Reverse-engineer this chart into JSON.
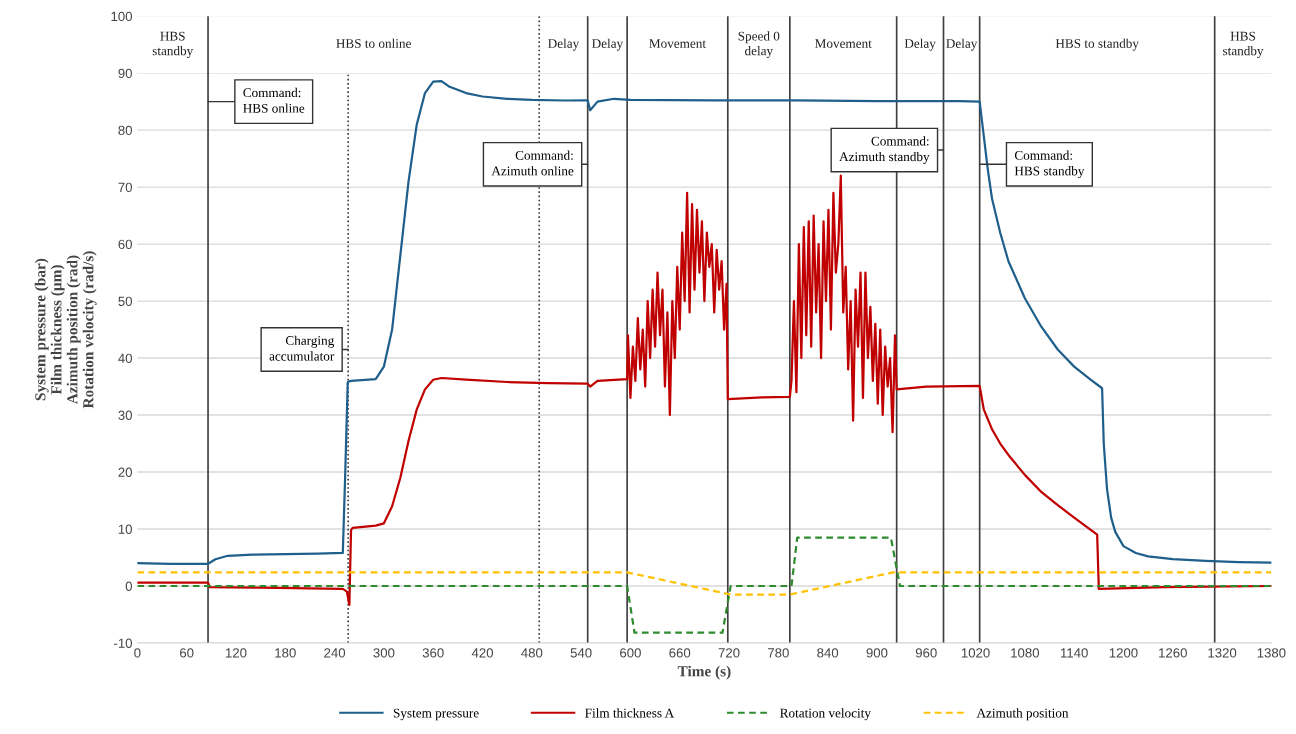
{
  "chart_data": {
    "type": "line",
    "xlabel": "Time (s)",
    "ylabel": "System pressure (bar)\nFilm thickness (µm)\nAzimuth position (rad)\nRotation velocity (rad/s)",
    "xlim": [
      0,
      1380
    ],
    "xticks": [
      0,
      60,
      120,
      180,
      240,
      300,
      360,
      420,
      480,
      540,
      600,
      660,
      720,
      780,
      840,
      900,
      960,
      1020,
      1080,
      1140,
      1200,
      1260,
      1320,
      1380
    ],
    "ylim": [
      -10,
      100
    ],
    "yticks": [
      -10,
      0,
      10,
      20,
      30,
      40,
      50,
      60,
      70,
      80,
      90,
      100
    ],
    "grid": "y",
    "legend": "bottom",
    "series": [
      {
        "name": "System pressure",
        "color": "#1f5f8b",
        "line_style": "solid",
        "x": [
          0,
          40,
          86,
          95,
          110,
          140,
          180,
          220,
          250,
          253,
          256,
          260,
          290,
          300,
          310,
          320,
          330,
          340,
          350,
          360,
          370,
          380,
          400,
          420,
          450,
          480,
          520,
          548,
          551,
          560,
          580,
          600,
          700,
          800,
          900,
          1000,
          1025,
          1030,
          1035,
          1040,
          1050,
          1060,
          1080,
          1100,
          1120,
          1140,
          1160,
          1174,
          1176,
          1180,
          1185,
          1190,
          1200,
          1215,
          1230,
          1260,
          1300,
          1340,
          1380
        ],
        "values": [
          4.0,
          3.9,
          3.9,
          4.7,
          5.3,
          5.5,
          5.6,
          5.7,
          5.8,
          20,
          35.8,
          36.0,
          36.3,
          38.5,
          45,
          58,
          71,
          81,
          86.5,
          88.5,
          88.6,
          87.6,
          86.5,
          85.9,
          85.5,
          85.3,
          85.2,
          85.2,
          83.5,
          85.0,
          85.5,
          85.3,
          85.2,
          85.2,
          85.1,
          85.1,
          85.0,
          79,
          73,
          68,
          62,
          57,
          50.5,
          45.5,
          41.5,
          38.5,
          36.2,
          34.7,
          25,
          17,
          12,
          9.5,
          7,
          5.8,
          5.2,
          4.7,
          4.4,
          4.2,
          4.1
        ]
      },
      {
        "name": "Film thickness A",
        "color": "#c00000",
        "line_style": "solid",
        "x": [
          0,
          86,
          88,
          150,
          250,
          255,
          258,
          260,
          262,
          290,
          300,
          310,
          320,
          330,
          340,
          350,
          360,
          370,
          400,
          450,
          500,
          548,
          551,
          560,
          596,
          597,
          600,
          603,
          606,
          609,
          612,
          615,
          618,
          621,
          624,
          627,
          630,
          633,
          636,
          639,
          642,
          645,
          648,
          651,
          654,
          657,
          660,
          663,
          666,
          669,
          672,
          675,
          678,
          681,
          684,
          687,
          690,
          693,
          696,
          699,
          702,
          705,
          708,
          711,
          714,
          717,
          718.5,
          760,
          794,
          796,
          799,
          802,
          805,
          808,
          811,
          814,
          817,
          820,
          823,
          826,
          829,
          832,
          835,
          838,
          841,
          844,
          847,
          850,
          853,
          856,
          859,
          862,
          865,
          868,
          871,
          874,
          877,
          880,
          883,
          886,
          889,
          892,
          895,
          898,
          901,
          904,
          907,
          910,
          913,
          916,
          919,
          922,
          924,
          960,
          1025,
          1030,
          1040,
          1050,
          1060,
          1080,
          1100,
          1120,
          1140,
          1168,
          1170,
          1250,
          1380
        ],
        "values": [
          0.6,
          0.6,
          -0.2,
          -0.3,
          -0.5,
          -1.0,
          -3.3,
          9.8,
          10.2,
          10.6,
          11.0,
          14,
          19,
          25.5,
          31,
          34.5,
          36.2,
          36.5,
          36.2,
          35.8,
          35.6,
          35.5,
          35.0,
          36.0,
          36.3,
          44,
          33,
          42,
          36,
          47,
          38,
          45,
          35,
          50,
          40,
          52,
          42,
          55,
          44,
          52,
          35,
          48,
          30,
          50,
          40,
          56,
          45,
          62,
          50,
          69,
          48,
          67,
          52,
          66,
          55,
          64,
          50,
          62,
          56,
          60,
          48,
          59,
          52,
          57,
          45,
          53,
          32.8,
          33.1,
          33.2,
          36,
          50,
          34,
          60,
          40,
          63,
          44,
          64,
          42,
          65,
          48,
          60,
          40,
          64,
          50,
          66,
          45,
          69,
          55,
          60,
          72,
          48,
          56,
          38,
          50,
          29,
          52,
          42,
          55,
          33,
          55,
          40,
          49,
          36,
          46,
          32,
          45,
          30,
          42,
          35,
          40,
          27,
          44,
          34.5,
          35.0,
          35.1,
          31,
          27.5,
          25,
          23,
          19.5,
          16.5,
          14.2,
          12,
          9.0,
          -0.5,
          -0.2,
          0.0
        ]
      },
      {
        "name": "Rotation velocity",
        "color": "#2e8b2e",
        "line_style": "dashed",
        "x": [
          0,
          596,
          605,
          712,
          722,
          796,
          803,
          917,
          928,
          1380
        ],
        "values": [
          0,
          0,
          -8.2,
          -8.2,
          0,
          0,
          8.5,
          8.5,
          0,
          0
        ]
      },
      {
        "name": "Azimuth position",
        "color": "#ffc000",
        "line_style": "dashed",
        "x": [
          0,
          596,
          722,
          794,
          920,
          1380
        ],
        "values": [
          2.4,
          2.4,
          -1.5,
          -1.5,
          2.4,
          2.4
        ]
      }
    ],
    "ref_lines": [
      {
        "axis": "x",
        "value": 86,
        "label": "Command:\nHBS online",
        "color": "#404040",
        "line_style": "solid"
      },
      {
        "axis": "x",
        "value": 256.5,
        "label": "Charging\naccumulator",
        "color": "#404040",
        "line_style": "dotted"
      },
      {
        "axis": "x",
        "value": 489,
        "color": "#404040",
        "line_style": "dotted"
      },
      {
        "axis": "x",
        "value": 548,
        "label": "Command:\nAzimuth online",
        "color": "#404040",
        "line_style": "solid"
      },
      {
        "axis": "x",
        "value": 596,
        "color": "#404040",
        "line_style": "solid"
      },
      {
        "axis": "x",
        "value": 718.5,
        "color": "#404040",
        "line_style": "solid"
      },
      {
        "axis": "x",
        "value": 794,
        "color": "#404040",
        "line_style": "solid"
      },
      {
        "axis": "x",
        "value": 924,
        "color": "#404040",
        "line_style": "solid"
      },
      {
        "axis": "x",
        "value": 981,
        "label": "Command:\nAzimuth standby",
        "color": "#404040",
        "line_style": "solid"
      },
      {
        "axis": "x",
        "value": 1025,
        "label": "Command:\nHBS standby",
        "color": "#404040",
        "line_style": "solid"
      },
      {
        "axis": "x",
        "value": 1311,
        "color": "#404040",
        "line_style": "solid"
      }
    ],
    "bands": [
      {
        "axis": "x",
        "from": 0,
        "to": 86,
        "label": "HBS\nstandby",
        "color": "#ffffff"
      },
      {
        "axis": "x",
        "from": 86,
        "to": 489,
        "label": "HBS to online",
        "color": "#ffffff"
      },
      {
        "axis": "x",
        "from": 489,
        "to": 548,
        "label": "Delay",
        "color": "#ffffff"
      },
      {
        "axis": "x",
        "from": 548,
        "to": 596,
        "label": "Delay",
        "color": "#ffffff"
      },
      {
        "axis": "x",
        "from": 596,
        "to": 718.5,
        "label": "Movement",
        "color": "#ffffff"
      },
      {
        "axis": "x",
        "from": 718.5,
        "to": 794,
        "label": "Speed 0\ndelay",
        "color": "#ffffff"
      },
      {
        "axis": "x",
        "from": 794,
        "to": 924,
        "label": "Movement",
        "color": "#ffffff"
      },
      {
        "axis": "x",
        "from": 924,
        "to": 981,
        "label": "Delay",
        "color": "#ffffff"
      },
      {
        "axis": "x",
        "from": 981,
        "to": 1025,
        "label": "Delay",
        "color": "#ffffff"
      },
      {
        "axis": "x",
        "from": 1025,
        "to": 1311,
        "label": "HBS to standby",
        "color": "#ffffff"
      },
      {
        "axis": "x",
        "from": 1311,
        "to": 1380,
        "label": "HBS\nstandby",
        "color": "#ffffff"
      }
    ]
  }
}
